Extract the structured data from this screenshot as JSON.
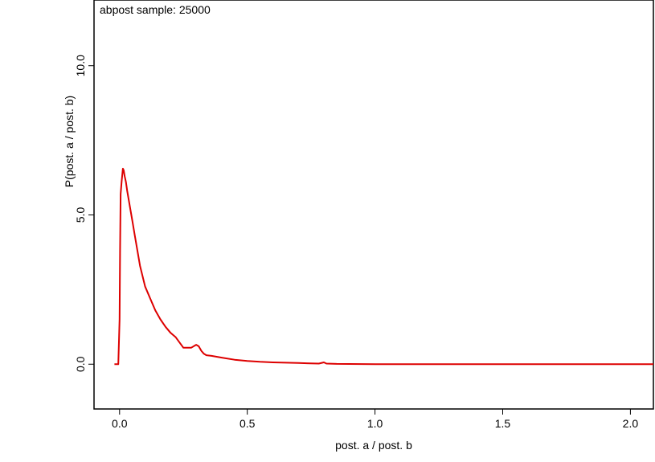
{
  "chart_data": {
    "type": "line",
    "annotation": "abpost sample: 25000",
    "xlabel": "post. a / post. b",
    "ylabel": "P(post. a / post. b)",
    "xlim": [
      -0.1,
      2.09
    ],
    "ylim": [
      -1.5,
      12.2
    ],
    "x_ticks": [
      0.0,
      0.5,
      1.0,
      1.5,
      2.0
    ],
    "x_tick_labels": [
      "0.0",
      "0.5",
      "1.0",
      "1.5",
      "2.0"
    ],
    "y_ticks": [
      0.0,
      5.0,
      10.0
    ],
    "y_tick_labels": [
      "0.0",
      "5.0",
      "10.0"
    ],
    "grid": false,
    "line_color": "#dd0000",
    "x": [
      -0.02,
      -0.005,
      0.0,
      0.002,
      0.004,
      0.006,
      0.008,
      0.01,
      0.013,
      0.016,
      0.02,
      0.025,
      0.03,
      0.04,
      0.05,
      0.06,
      0.07,
      0.08,
      0.09,
      0.1,
      0.12,
      0.14,
      0.16,
      0.18,
      0.2,
      0.22,
      0.25,
      0.28,
      0.3,
      0.31,
      0.32,
      0.33,
      0.34,
      0.36,
      0.4,
      0.45,
      0.5,
      0.55,
      0.6,
      0.7,
      0.78,
      0.8,
      0.81,
      0.85,
      1.0,
      1.5,
      2.0,
      2.09
    ],
    "y": [
      0.0,
      0.0,
      1.5,
      3.8,
      5.7,
      5.9,
      6.1,
      6.3,
      6.55,
      6.5,
      6.3,
      6.1,
      5.8,
      5.3,
      4.8,
      4.3,
      3.8,
      3.3,
      2.95,
      2.6,
      2.2,
      1.8,
      1.5,
      1.25,
      1.05,
      0.9,
      0.55,
      0.55,
      0.65,
      0.6,
      0.45,
      0.35,
      0.3,
      0.28,
      0.22,
      0.15,
      0.11,
      0.08,
      0.06,
      0.04,
      0.02,
      0.06,
      0.02,
      0.01,
      0.0,
      0.0,
      0.0,
      0.0
    ]
  }
}
